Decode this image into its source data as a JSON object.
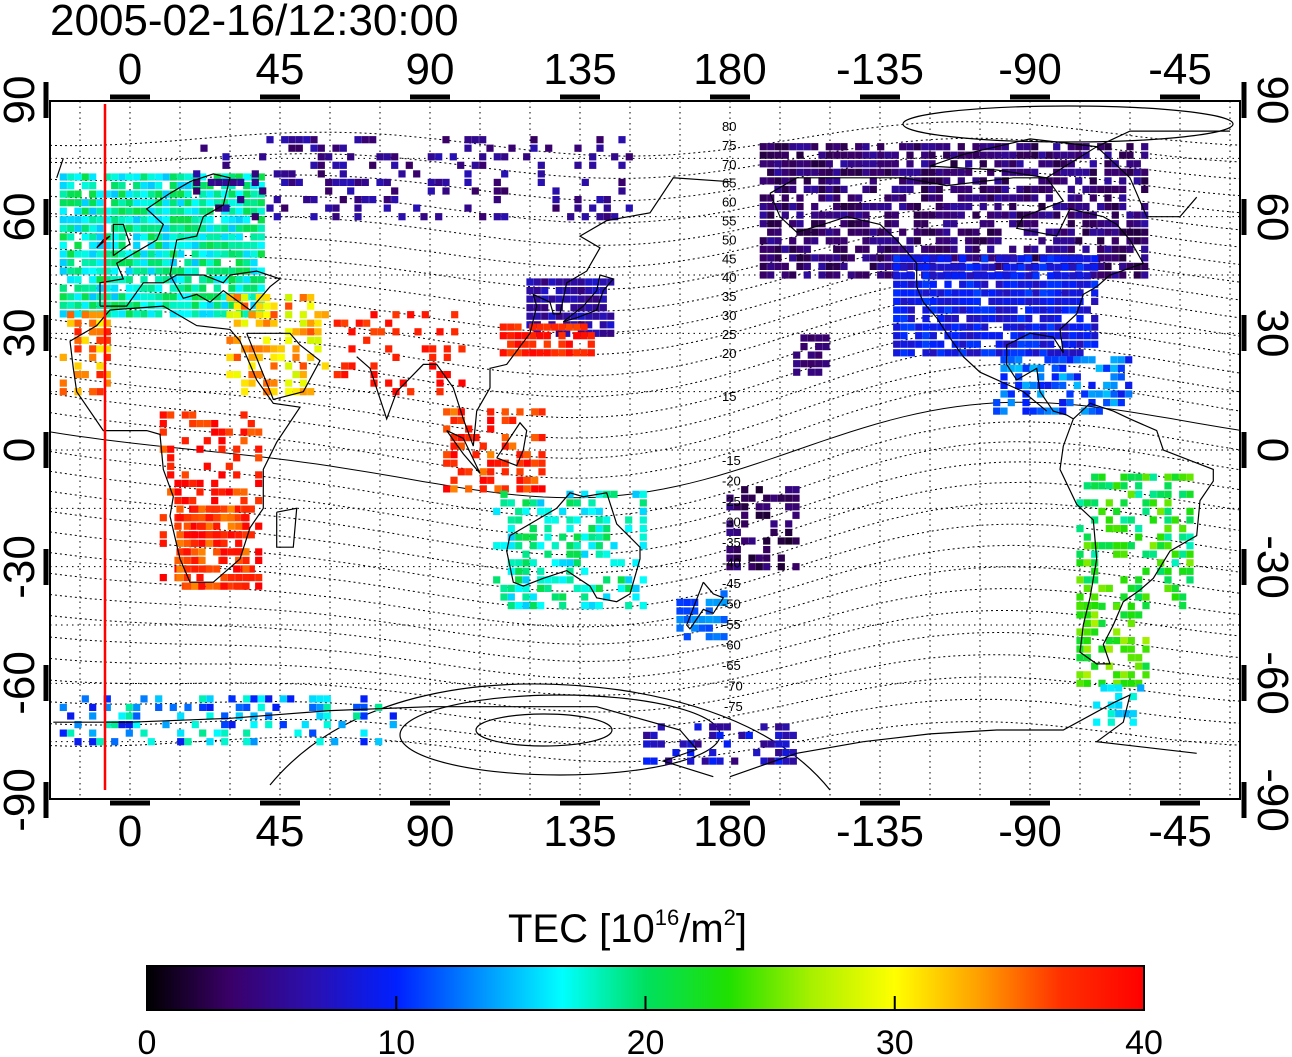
{
  "title": "2005-02-16/12:30:00",
  "map": {
    "lon_ticks_top": [
      "0",
      "45",
      "90",
      "135",
      "180",
      "-135",
      "-90",
      "-45"
    ],
    "lon_ticks_bottom": [
      "0",
      "45",
      "90",
      "135",
      "180",
      "-135",
      "-90",
      "-45"
    ],
    "lat_ticks_left": [
      "90",
      "60",
      "30",
      "0",
      "-30",
      "-60",
      "-90"
    ],
    "lat_ticks_right": [
      "90",
      "60",
      "30",
      "0",
      "-30",
      "-60",
      "-90"
    ],
    "north_contour_labels": [
      "80",
      "75",
      "70",
      "65",
      "60",
      "55",
      "50",
      "45",
      "40",
      "35",
      "30",
      "25",
      "20",
      "15"
    ],
    "south_contour_labels": [
      "-15",
      "-20",
      "-25",
      "-30",
      "-35",
      "-40",
      "-45",
      "-50",
      "-55",
      "-60",
      "-65",
      "-70",
      "-75"
    ],
    "terminator_color": "#ff0000"
  },
  "colorbar": {
    "label_prefix": "TEC  [10",
    "label_exp1": "16",
    "label_mid": "/m",
    "label_exp2": "2",
    "label_suffix": "]",
    "ticks": [
      "0",
      "10",
      "20",
      "30",
      "40"
    ],
    "min": 0,
    "max": 40,
    "stops": [
      "#000000",
      "#3a0068",
      "#2a10b0",
      "#0020ff",
      "#0090ff",
      "#00ffff",
      "#00e060",
      "#20e000",
      "#a8f000",
      "#ffff00",
      "#ffa000",
      "#ff3000",
      "#ff0000"
    ]
  }
}
